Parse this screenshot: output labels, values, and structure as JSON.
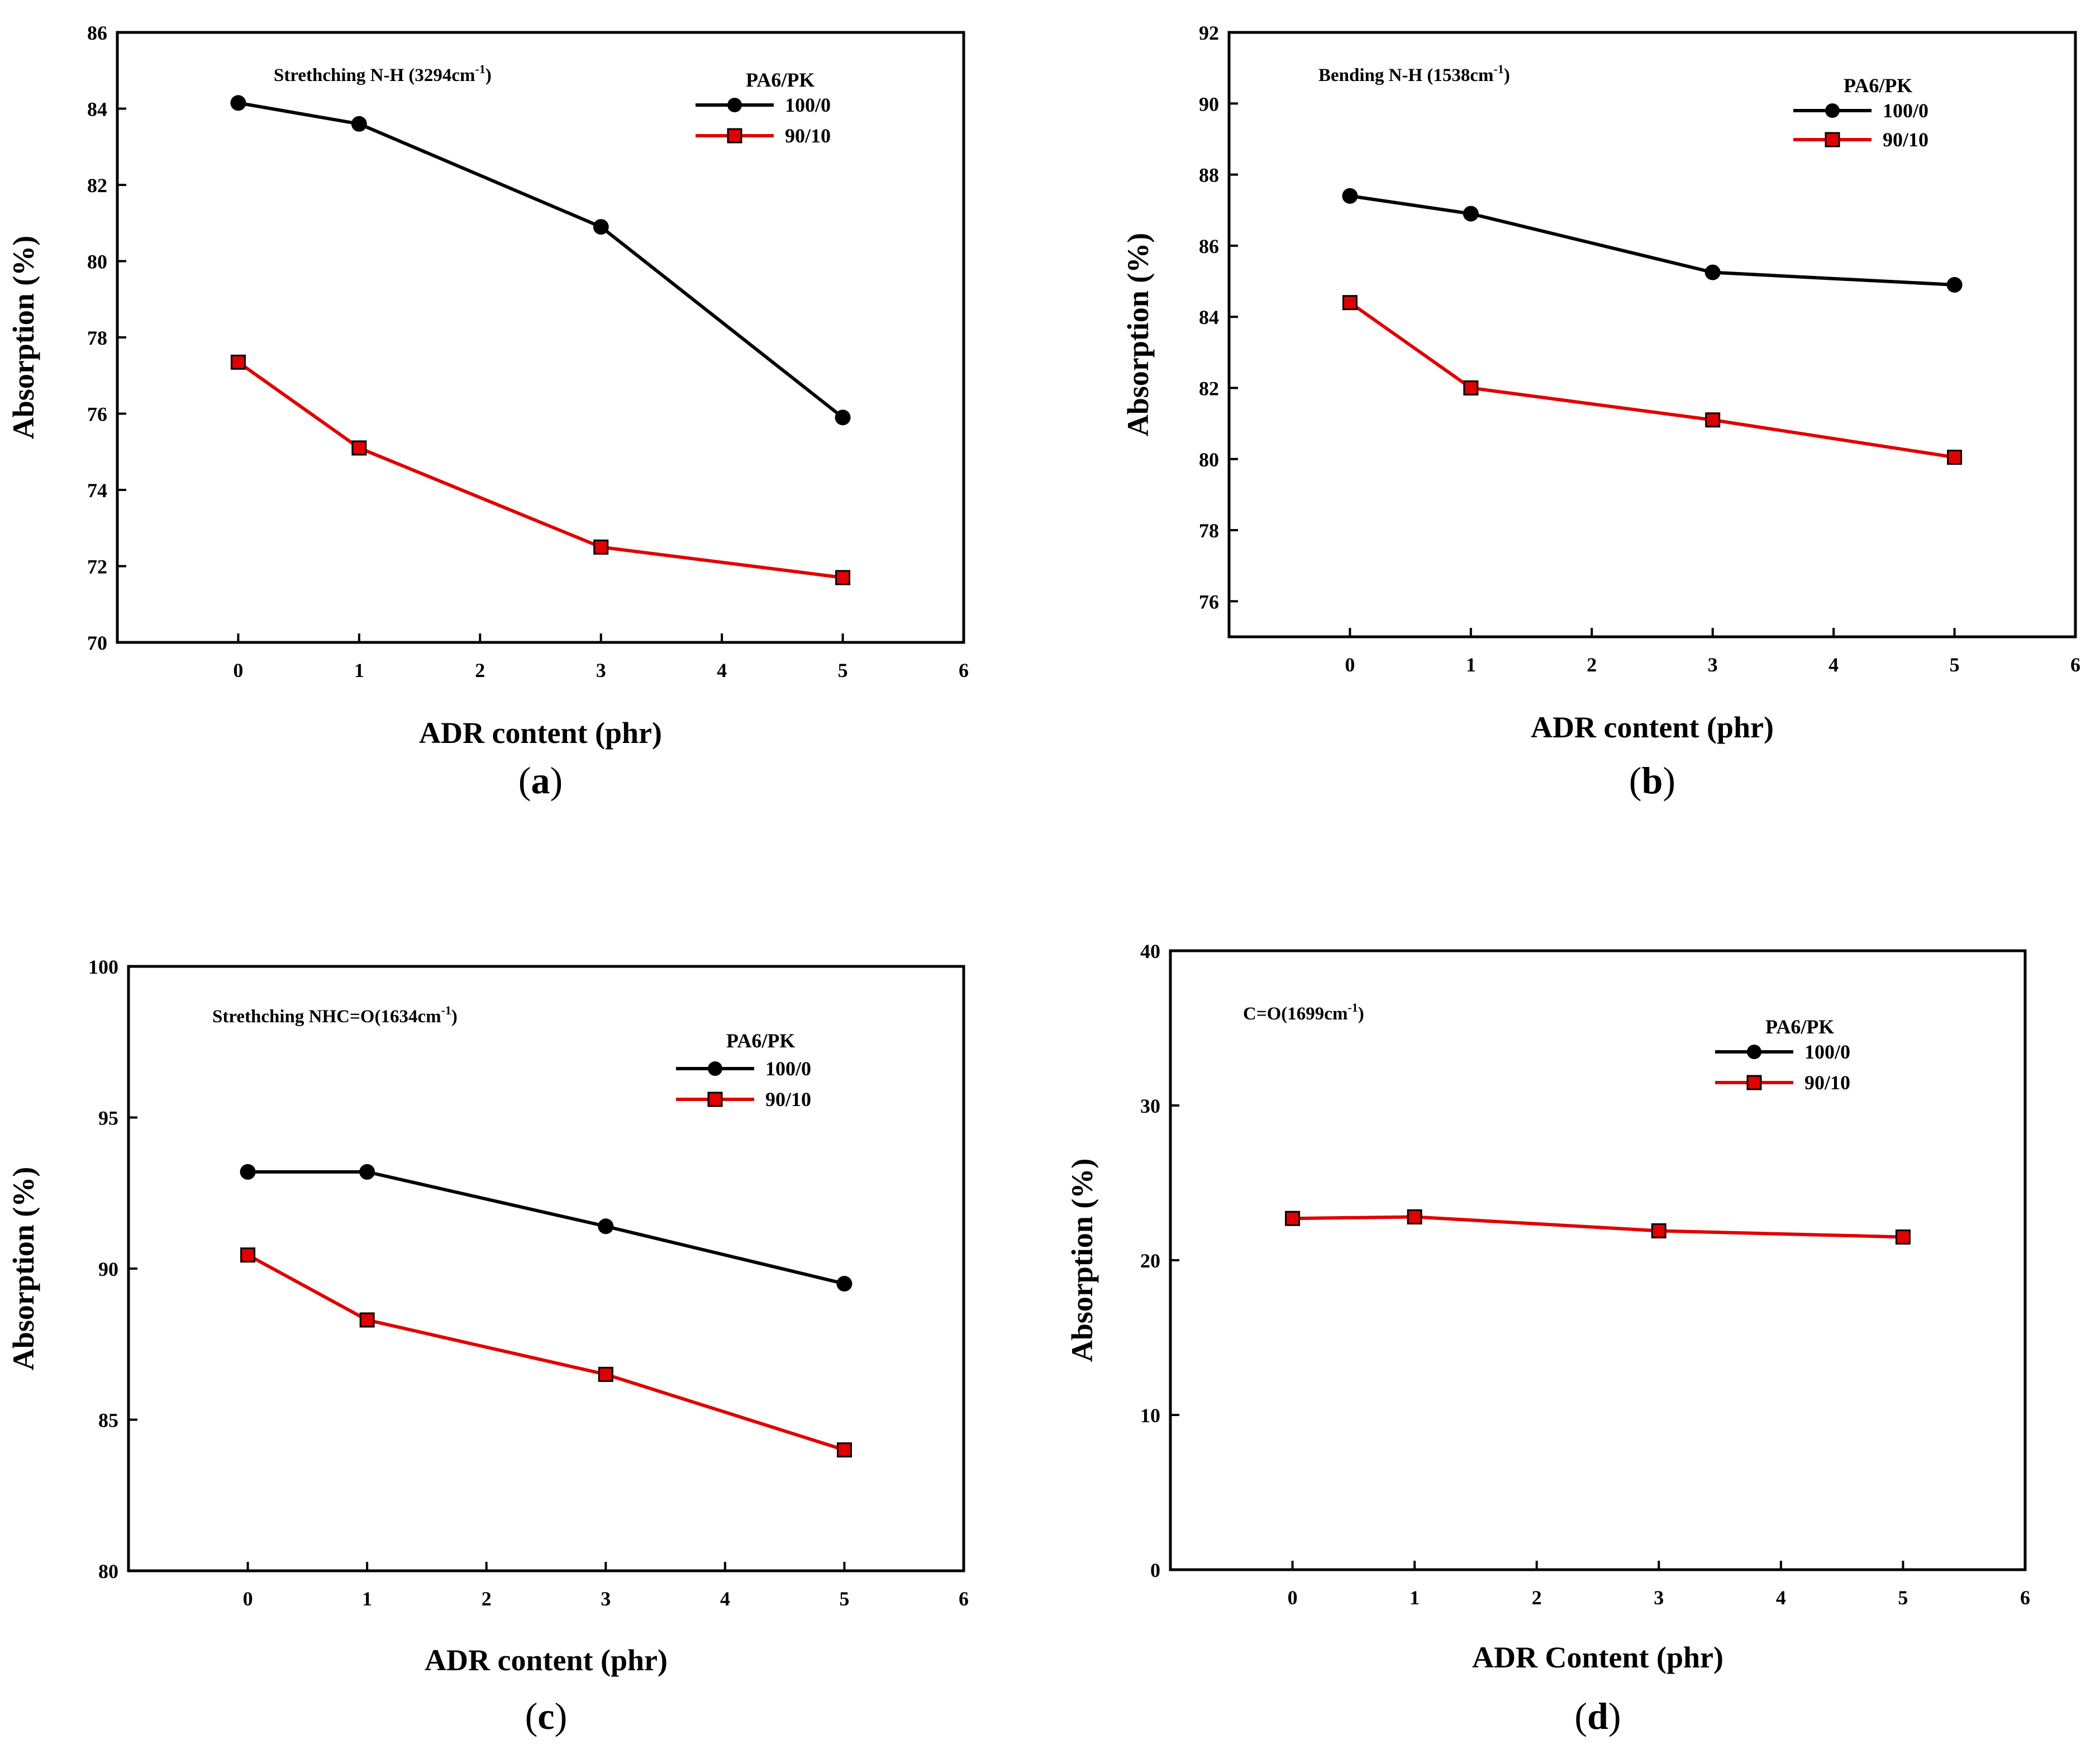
{
  "chart_data": [
    {
      "type": "line",
      "panel_label": "a",
      "annotation": {
        "prefix": "Strethching N-H (3294cm",
        "sup": "-1",
        "suffix": ")"
      },
      "xlabel": "ADR content (phr)",
      "ylabel": "Absorption (%)",
      "xlim": [
        -1,
        6
      ],
      "ylim": [
        70,
        86
      ],
      "xticks": [
        0,
        1,
        2,
        3,
        4,
        5,
        6
      ],
      "yticks": [
        70,
        72,
        74,
        76,
        78,
        80,
        82,
        84,
        86
      ],
      "legend": {
        "title": "PA6/PK",
        "position": "top-right"
      },
      "series": [
        {
          "name": "100/0",
          "color": "#000000",
          "marker": "circle",
          "x": [
            0,
            1,
            3,
            5
          ],
          "y": [
            84.15,
            83.6,
            80.9,
            75.9
          ]
        },
        {
          "name": "90/10",
          "color": "#e00000",
          "marker": "square",
          "x": [
            0,
            1,
            3,
            5
          ],
          "y": [
            77.35,
            75.1,
            72.5,
            71.7
          ]
        }
      ]
    },
    {
      "type": "line",
      "panel_label": "b",
      "annotation": {
        "prefix": "Bending N-H (1538cm",
        "sup": "-1",
        "suffix": ")"
      },
      "xlabel": "ADR content (phr)",
      "ylabel": "Absorption (%)",
      "xlim": [
        -1,
        6
      ],
      "ylim": [
        75,
        92
      ],
      "xticks": [
        0,
        1,
        2,
        3,
        4,
        5,
        6
      ],
      "yticks": [
        76,
        78,
        80,
        82,
        84,
        86,
        88,
        90,
        92
      ],
      "legend": {
        "title": "PA6/PK",
        "position": "top-right"
      },
      "series": [
        {
          "name": "100/0",
          "color": "#000000",
          "marker": "circle",
          "x": [
            0,
            1,
            3,
            5
          ],
          "y": [
            87.4,
            86.9,
            85.25,
            84.9
          ]
        },
        {
          "name": "90/10",
          "color": "#e00000",
          "marker": "square",
          "x": [
            0,
            1,
            3,
            5
          ],
          "y": [
            84.4,
            82.0,
            81.1,
            80.05
          ]
        }
      ]
    },
    {
      "type": "line",
      "panel_label": "c",
      "annotation": {
        "prefix": "Strethching NHC=O(1634cm",
        "sup": "-1",
        "suffix": ")"
      },
      "xlabel": "ADR content (phr)",
      "ylabel": "Absorption (%)",
      "xlim": [
        -1,
        6
      ],
      "ylim": [
        80,
        100
      ],
      "xticks": [
        0,
        1,
        2,
        3,
        4,
        5,
        6
      ],
      "yticks": [
        80,
        85,
        90,
        95,
        100
      ],
      "legend": {
        "title": "PA6/PK",
        "position": "top-right"
      },
      "series": [
        {
          "name": "100/0",
          "color": "#000000",
          "marker": "circle",
          "x": [
            0,
            1,
            3,
            5
          ],
          "y": [
            93.2,
            93.2,
            91.4,
            89.5
          ]
        },
        {
          "name": "90/10",
          "color": "#e00000",
          "marker": "square",
          "x": [
            0,
            1,
            3,
            5
          ],
          "y": [
            90.45,
            88.3,
            86.5,
            84.0
          ]
        }
      ]
    },
    {
      "type": "line",
      "panel_label": "d",
      "annotation": {
        "prefix": "C=O(1699cm",
        "sup": "-1",
        "suffix": ")"
      },
      "xlabel": "ADR Content (phr)",
      "ylabel": "Absorption (%)",
      "xlim": [
        -1,
        6
      ],
      "ylim": [
        0,
        40
      ],
      "xticks": [
        0,
        1,
        2,
        3,
        4,
        5,
        6
      ],
      "yticks": [
        0,
        10,
        20,
        30,
        40
      ],
      "legend": {
        "title": "PA6/PK",
        "position": "top-right"
      },
      "series": [
        {
          "name": "100/0",
          "color": "#000000",
          "marker": "circle",
          "x": [],
          "y": []
        },
        {
          "name": "90/10",
          "color": "#e00000",
          "marker": "square",
          "x": [
            0,
            1,
            3,
            5
          ],
          "y": [
            22.7,
            22.8,
            21.9,
            21.5
          ]
        }
      ]
    }
  ]
}
